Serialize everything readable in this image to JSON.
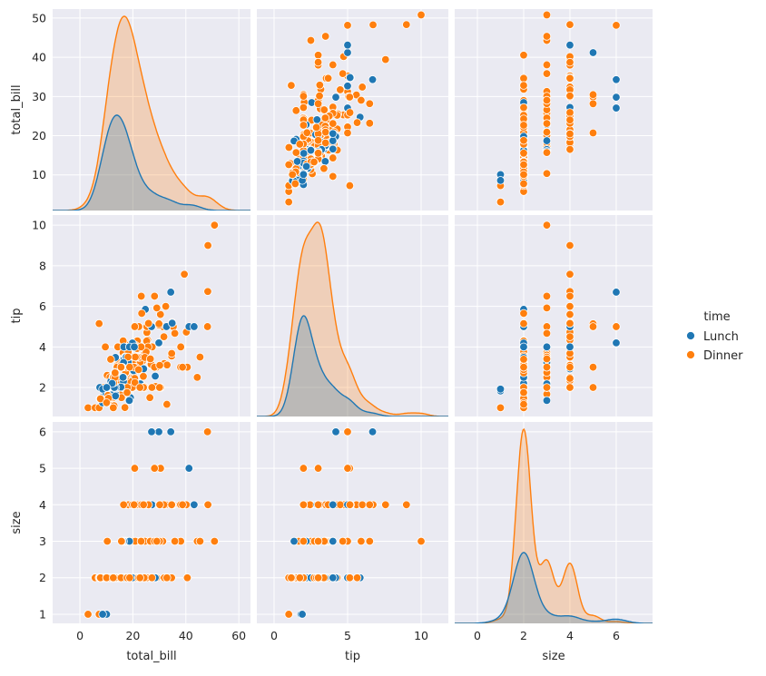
{
  "chart_data": {
    "type": "scatter",
    "kind": "pairplot",
    "variables": [
      "total_bill",
      "tip",
      "size"
    ],
    "hue": "time",
    "legend": {
      "title": "time",
      "placement": "right",
      "entries": [
        {
          "label": "Lunch",
          "color": "#1f77b4"
        },
        {
          "label": "Dinner",
          "color": "#ff7f0e"
        }
      ]
    },
    "diag_kind": "kde",
    "limits": {
      "total_bill": [
        -10.3,
        64.4
      ],
      "tip": [
        0.57,
        10.5
      ],
      "size": [
        0.75,
        6.27
      ]
    },
    "diag_xlimits": {
      "total_bill": [
        -10.3,
        64.4
      ],
      "tip": [
        -1.17,
        11.85
      ],
      "size": [
        -0.98,
        7.57
      ]
    },
    "row_limits": {
      "total_bill": [
        0.9,
        52.3
      ],
      "tip": [
        0.57,
        10.5
      ],
      "size": [
        0.75,
        6.27
      ]
    },
    "ticks": {
      "total_bill_x": [
        0,
        20,
        40,
        60
      ],
      "tip_x": [
        0,
        5,
        10
      ],
      "size_x": [
        0,
        2,
        4,
        6
      ],
      "total_bill_y": [
        10,
        20,
        30,
        40,
        50
      ],
      "tip_y": [
        2,
        4,
        6,
        8,
        10
      ],
      "size_y": [
        1,
        2,
        3,
        4,
        5,
        6
      ]
    },
    "records_fields": [
      "total_bill",
      "tip",
      "size",
      "time"
    ],
    "records": [
      [
        16.99,
        1.01,
        2,
        "D"
      ],
      [
        10.34,
        1.66,
        3,
        "D"
      ],
      [
        21.01,
        3.5,
        3,
        "D"
      ],
      [
        23.68,
        3.31,
        2,
        "D"
      ],
      [
        24.59,
        3.61,
        4,
        "D"
      ],
      [
        25.29,
        4.71,
        4,
        "D"
      ],
      [
        8.77,
        2.0,
        2,
        "D"
      ],
      [
        26.88,
        3.12,
        4,
        "D"
      ],
      [
        15.04,
        1.96,
        2,
        "D"
      ],
      [
        14.78,
        3.23,
        2,
        "D"
      ],
      [
        10.27,
        1.71,
        2,
        "D"
      ],
      [
        35.26,
        5.0,
        4,
        "D"
      ],
      [
        15.42,
        1.57,
        2,
        "D"
      ],
      [
        18.43,
        3.0,
        4,
        "D"
      ],
      [
        14.83,
        3.02,
        2,
        "D"
      ],
      [
        21.58,
        3.92,
        2,
        "D"
      ],
      [
        10.33,
        1.67,
        3,
        "D"
      ],
      [
        16.29,
        3.71,
        3,
        "D"
      ],
      [
        16.97,
        3.5,
        3,
        "D"
      ],
      [
        20.65,
        3.35,
        3,
        "D"
      ],
      [
        17.92,
        4.08,
        2,
        "D"
      ],
      [
        20.29,
        2.75,
        2,
        "D"
      ],
      [
        15.77,
        2.23,
        2,
        "D"
      ],
      [
        39.42,
        7.58,
        4,
        "D"
      ],
      [
        19.82,
        3.18,
        2,
        "D"
      ],
      [
        17.81,
        2.34,
        4,
        "D"
      ],
      [
        13.37,
        2.0,
        2,
        "D"
      ],
      [
        12.69,
        2.0,
        2,
        "D"
      ],
      [
        21.7,
        4.3,
        2,
        "D"
      ],
      [
        19.65,
        3.0,
        2,
        "D"
      ],
      [
        9.55,
        1.45,
        2,
        "D"
      ],
      [
        18.35,
        2.5,
        4,
        "D"
      ],
      [
        15.06,
        3.0,
        2,
        "D"
      ],
      [
        20.69,
        2.45,
        4,
        "D"
      ],
      [
        17.78,
        3.27,
        2,
        "D"
      ],
      [
        24.06,
        3.6,
        3,
        "D"
      ],
      [
        16.31,
        2.0,
        3,
        "D"
      ],
      [
        16.93,
        3.07,
        3,
        "D"
      ],
      [
        18.69,
        2.31,
        3,
        "D"
      ],
      [
        31.27,
        5.0,
        3,
        "D"
      ],
      [
        16.04,
        2.24,
        3,
        "D"
      ],
      [
        17.46,
        2.54,
        2,
        "D"
      ],
      [
        13.94,
        3.06,
        2,
        "D"
      ],
      [
        9.68,
        1.32,
        2,
        "D"
      ],
      [
        30.4,
        5.6,
        4,
        "D"
      ],
      [
        18.29,
        3.0,
        2,
        "D"
      ],
      [
        22.23,
        5.0,
        2,
        "D"
      ],
      [
        32.4,
        6.0,
        4,
        "D"
      ],
      [
        28.55,
        2.05,
        3,
        "D"
      ],
      [
        18.04,
        3.0,
        2,
        "D"
      ],
      [
        12.54,
        2.5,
        2,
        "D"
      ],
      [
        10.29,
        2.6,
        2,
        "D"
      ],
      [
        34.81,
        5.2,
        4,
        "D"
      ],
      [
        9.94,
        1.56,
        2,
        "D"
      ],
      [
        25.56,
        4.34,
        4,
        "D"
      ],
      [
        19.49,
        3.51,
        2,
        "D"
      ],
      [
        38.01,
        3.0,
        4,
        "D"
      ],
      [
        26.41,
        1.5,
        2,
        "D"
      ],
      [
        11.24,
        1.76,
        2,
        "D"
      ],
      [
        48.27,
        6.73,
        4,
        "D"
      ],
      [
        20.29,
        3.21,
        2,
        "D"
      ],
      [
        13.81,
        2.0,
        2,
        "D"
      ],
      [
        11.02,
        1.98,
        2,
        "D"
      ],
      [
        18.29,
        3.76,
        4,
        "D"
      ],
      [
        17.59,
        2.64,
        3,
        "D"
      ],
      [
        20.08,
        3.15,
        3,
        "D"
      ],
      [
        16.45,
        2.47,
        2,
        "D"
      ],
      [
        3.07,
        1.0,
        1,
        "D"
      ],
      [
        20.23,
        2.01,
        2,
        "D"
      ],
      [
        15.01,
        2.09,
        2,
        "D"
      ],
      [
        12.02,
        1.97,
        2,
        "D"
      ],
      [
        17.07,
        3.0,
        3,
        "D"
      ],
      [
        26.86,
        3.14,
        2,
        "D"
      ],
      [
        25.28,
        5.0,
        2,
        "D"
      ],
      [
        14.73,
        2.2,
        2,
        "D"
      ],
      [
        10.51,
        1.25,
        2,
        "D"
      ],
      [
        17.92,
        3.08,
        2,
        "D"
      ],
      [
        27.2,
        4.0,
        4,
        "L"
      ],
      [
        22.76,
        3.0,
        2,
        "L"
      ],
      [
        17.29,
        2.71,
        2,
        "L"
      ],
      [
        19.44,
        3.0,
        2,
        "L"
      ],
      [
        16.66,
        3.4,
        2,
        "L"
      ],
      [
        10.07,
        1.83,
        1,
        "L"
      ],
      [
        32.68,
        5.0,
        2,
        "L"
      ],
      [
        15.98,
        2.03,
        2,
        "L"
      ],
      [
        34.83,
        5.17,
        4,
        "L"
      ],
      [
        13.03,
        2.0,
        2,
        "L"
      ],
      [
        18.28,
        4.0,
        2,
        "L"
      ],
      [
        24.71,
        5.85,
        2,
        "L"
      ],
      [
        21.16,
        3.0,
        2,
        "L"
      ],
      [
        28.97,
        3.0,
        2,
        "D"
      ],
      [
        22.49,
        3.5,
        2,
        "D"
      ],
      [
        5.75,
        1.0,
        2,
        "D"
      ],
      [
        16.32,
        4.3,
        2,
        "D"
      ],
      [
        22.75,
        3.25,
        2,
        "D"
      ],
      [
        40.17,
        4.73,
        4,
        "D"
      ],
      [
        27.28,
        4.0,
        2,
        "D"
      ],
      [
        12.03,
        1.5,
        2,
        "D"
      ],
      [
        21.01,
        3.0,
        2,
        "D"
      ],
      [
        12.46,
        1.5,
        2,
        "D"
      ],
      [
        11.35,
        2.5,
        2,
        "D"
      ],
      [
        15.38,
        3.0,
        2,
        "D"
      ],
      [
        44.3,
        2.5,
        3,
        "D"
      ],
      [
        22.42,
        3.48,
        2,
        "D"
      ],
      [
        20.92,
        4.08,
        2,
        "D"
      ],
      [
        15.36,
        1.64,
        2,
        "D"
      ],
      [
        20.49,
        4.06,
        2,
        "D"
      ],
      [
        25.21,
        4.29,
        2,
        "D"
      ],
      [
        18.24,
        3.76,
        2,
        "D"
      ],
      [
        14.31,
        4.0,
        2,
        "D"
      ],
      [
        14.0,
        3.0,
        2,
        "D"
      ],
      [
        7.25,
        1.0,
        1,
        "D"
      ],
      [
        38.07,
        4.0,
        3,
        "D"
      ],
      [
        23.95,
        2.55,
        2,
        "D"
      ],
      [
        25.71,
        4.0,
        3,
        "D"
      ],
      [
        17.31,
        3.5,
        2,
        "D"
      ],
      [
        29.93,
        5.07,
        4,
        "D"
      ],
      [
        10.65,
        1.5,
        2,
        "L"
      ],
      [
        12.43,
        1.8,
        2,
        "L"
      ],
      [
        24.08,
        2.92,
        4,
        "L"
      ],
      [
        11.69,
        2.31,
        2,
        "L"
      ],
      [
        13.42,
        1.68,
        2,
        "L"
      ],
      [
        14.26,
        2.5,
        2,
        "L"
      ],
      [
        15.95,
        2.0,
        2,
        "L"
      ],
      [
        12.48,
        2.52,
        2,
        "L"
      ],
      [
        29.8,
        4.2,
        6,
        "L"
      ],
      [
        8.52,
        1.48,
        2,
        "L"
      ],
      [
        14.52,
        2.0,
        2,
        "L"
      ],
      [
        11.38,
        2.0,
        2,
        "L"
      ],
      [
        22.82,
        2.18,
        3,
        "L"
      ],
      [
        19.08,
        1.5,
        2,
        "L"
      ],
      [
        20.27,
        2.83,
        2,
        "L"
      ],
      [
        11.17,
        1.5,
        2,
        "L"
      ],
      [
        12.26,
        2.0,
        2,
        "L"
      ],
      [
        18.26,
        3.25,
        2,
        "L"
      ],
      [
        8.51,
        1.25,
        2,
        "L"
      ],
      [
        10.33,
        2.0,
        2,
        "L"
      ],
      [
        14.15,
        2.0,
        2,
        "L"
      ],
      [
        16.0,
        2.0,
        2,
        "L"
      ],
      [
        13.16,
        2.75,
        2,
        "L"
      ],
      [
        17.47,
        3.5,
        2,
        "L"
      ],
      [
        34.3,
        6.7,
        6,
        "L"
      ],
      [
        41.19,
        5.0,
        5,
        "L"
      ],
      [
        27.05,
        5.0,
        6,
        "L"
      ],
      [
        16.43,
        2.3,
        2,
        "L"
      ],
      [
        8.35,
        1.5,
        2,
        "L"
      ],
      [
        18.64,
        1.36,
        3,
        "L"
      ],
      [
        11.87,
        1.63,
        2,
        "L"
      ],
      [
        9.78,
        1.73,
        2,
        "L"
      ],
      [
        7.51,
        2.0,
        2,
        "L"
      ],
      [
        14.07,
        2.5,
        2,
        "D"
      ],
      [
        13.13,
        2.0,
        2,
        "D"
      ],
      [
        17.26,
        2.74,
        3,
        "D"
      ],
      [
        24.55,
        2.0,
        4,
        "D"
      ],
      [
        19.77,
        2.0,
        4,
        "D"
      ],
      [
        29.85,
        5.14,
        5,
        "D"
      ],
      [
        48.17,
        5.0,
        6,
        "D"
      ],
      [
        25.0,
        3.75,
        4,
        "D"
      ],
      [
        13.39,
        2.61,
        2,
        "D"
      ],
      [
        16.49,
        2.0,
        4,
        "D"
      ],
      [
        21.5,
        3.5,
        4,
        "D"
      ],
      [
        12.66,
        2.5,
        2,
        "D"
      ],
      [
        16.21,
        2.0,
        3,
        "D"
      ],
      [
        13.81,
        2.0,
        2,
        "D"
      ],
      [
        17.51,
        3.0,
        2,
        "D"
      ],
      [
        24.52,
        3.48,
        3,
        "D"
      ],
      [
        20.76,
        2.24,
        2,
        "D"
      ],
      [
        31.71,
        4.5,
        4,
        "D"
      ],
      [
        10.59,
        1.61,
        2,
        "D"
      ],
      [
        10.63,
        2.0,
        2,
        "D"
      ],
      [
        50.81,
        10.0,
        3,
        "D"
      ],
      [
        15.81,
        3.16,
        2,
        "D"
      ],
      [
        7.25,
        5.15,
        2,
        "D"
      ],
      [
        31.85,
        3.18,
        2,
        "D"
      ],
      [
        16.82,
        4.0,
        2,
        "D"
      ],
      [
        32.9,
        3.11,
        2,
        "D"
      ],
      [
        17.89,
        2.0,
        2,
        "D"
      ],
      [
        14.48,
        2.0,
        2,
        "D"
      ],
      [
        9.6,
        4.0,
        2,
        "D"
      ],
      [
        34.63,
        3.55,
        2,
        "D"
      ],
      [
        34.65,
        3.68,
        4,
        "D"
      ],
      [
        23.33,
        5.65,
        2,
        "D"
      ],
      [
        45.35,
        3.5,
        3,
        "D"
      ],
      [
        23.17,
        6.5,
        4,
        "D"
      ],
      [
        40.55,
        3.0,
        2,
        "D"
      ],
      [
        20.69,
        5.0,
        5,
        "D"
      ],
      [
        20.9,
        3.5,
        3,
        "D"
      ],
      [
        30.46,
        2.0,
        5,
        "D"
      ],
      [
        18.15,
        3.5,
        3,
        "D"
      ],
      [
        23.1,
        4.0,
        3,
        "D"
      ],
      [
        15.69,
        1.5,
        2,
        "D"
      ],
      [
        19.81,
        4.19,
        2,
        "L"
      ],
      [
        28.44,
        2.56,
        2,
        "L"
      ],
      [
        15.48,
        2.02,
        2,
        "L"
      ],
      [
        16.58,
        4.0,
        2,
        "L"
      ],
      [
        7.56,
        1.44,
        2,
        "L"
      ],
      [
        10.34,
        2.0,
        2,
        "L"
      ],
      [
        43.11,
        5.0,
        4,
        "L"
      ],
      [
        13.0,
        2.0,
        2,
        "L"
      ],
      [
        13.51,
        2.0,
        2,
        "L"
      ],
      [
        18.71,
        4.0,
        3,
        "L"
      ],
      [
        12.74,
        2.01,
        2,
        "L"
      ],
      [
        13.0,
        2.0,
        2,
        "L"
      ],
      [
        16.4,
        2.5,
        2,
        "L"
      ],
      [
        20.53,
        4.0,
        4,
        "L"
      ],
      [
        16.47,
        3.23,
        3,
        "L"
      ],
      [
        26.59,
        3.41,
        3,
        "D"
      ],
      [
        38.73,
        3.0,
        4,
        "D"
      ],
      [
        24.27,
        2.03,
        2,
        "D"
      ],
      [
        12.76,
        2.23,
        2,
        "D"
      ],
      [
        30.06,
        2.0,
        3,
        "D"
      ],
      [
        25.89,
        5.16,
        4,
        "D"
      ],
      [
        48.33,
        9.0,
        4,
        "D"
      ],
      [
        13.27,
        2.5,
        2,
        "D"
      ],
      [
        28.17,
        6.5,
        3,
        "D"
      ],
      [
        12.9,
        1.1,
        2,
        "D"
      ],
      [
        28.15,
        3.0,
        5,
        "D"
      ],
      [
        11.59,
        1.5,
        2,
        "D"
      ],
      [
        7.74,
        1.44,
        2,
        "D"
      ],
      [
        30.14,
        3.09,
        4,
        "D"
      ],
      [
        12.16,
        2.2,
        2,
        "L"
      ],
      [
        13.42,
        3.48,
        2,
        "L"
      ],
      [
        8.58,
        1.92,
        1,
        "L"
      ],
      [
        15.98,
        3.0,
        3,
        "L"
      ],
      [
        13.42,
        1.58,
        2,
        "L"
      ],
      [
        16.27,
        2.5,
        2,
        "L"
      ],
      [
        10.09,
        2.0,
        2,
        "L"
      ],
      [
        20.45,
        3.0,
        4,
        "D"
      ],
      [
        13.28,
        2.72,
        2,
        "D"
      ],
      [
        22.12,
        2.88,
        2,
        "D"
      ],
      [
        24.01,
        2.0,
        4,
        "D"
      ],
      [
        15.69,
        3.0,
        3,
        "D"
      ],
      [
        11.61,
        3.39,
        2,
        "D"
      ],
      [
        10.77,
        1.47,
        2,
        "D"
      ],
      [
        15.53,
        3.0,
        2,
        "D"
      ],
      [
        10.07,
        1.25,
        2,
        "D"
      ],
      [
        12.6,
        1.0,
        2,
        "D"
      ],
      [
        32.83,
        1.17,
        2,
        "D"
      ],
      [
        35.83,
        4.67,
        3,
        "D"
      ],
      [
        29.03,
        5.92,
        3,
        "D"
      ],
      [
        27.18,
        2.0,
        2,
        "D"
      ],
      [
        22.67,
        2.0,
        2,
        "D"
      ],
      [
        17.82,
        1.75,
        2,
        "D"
      ],
      [
        18.78,
        3.0,
        2,
        "D"
      ]
    ]
  }
}
